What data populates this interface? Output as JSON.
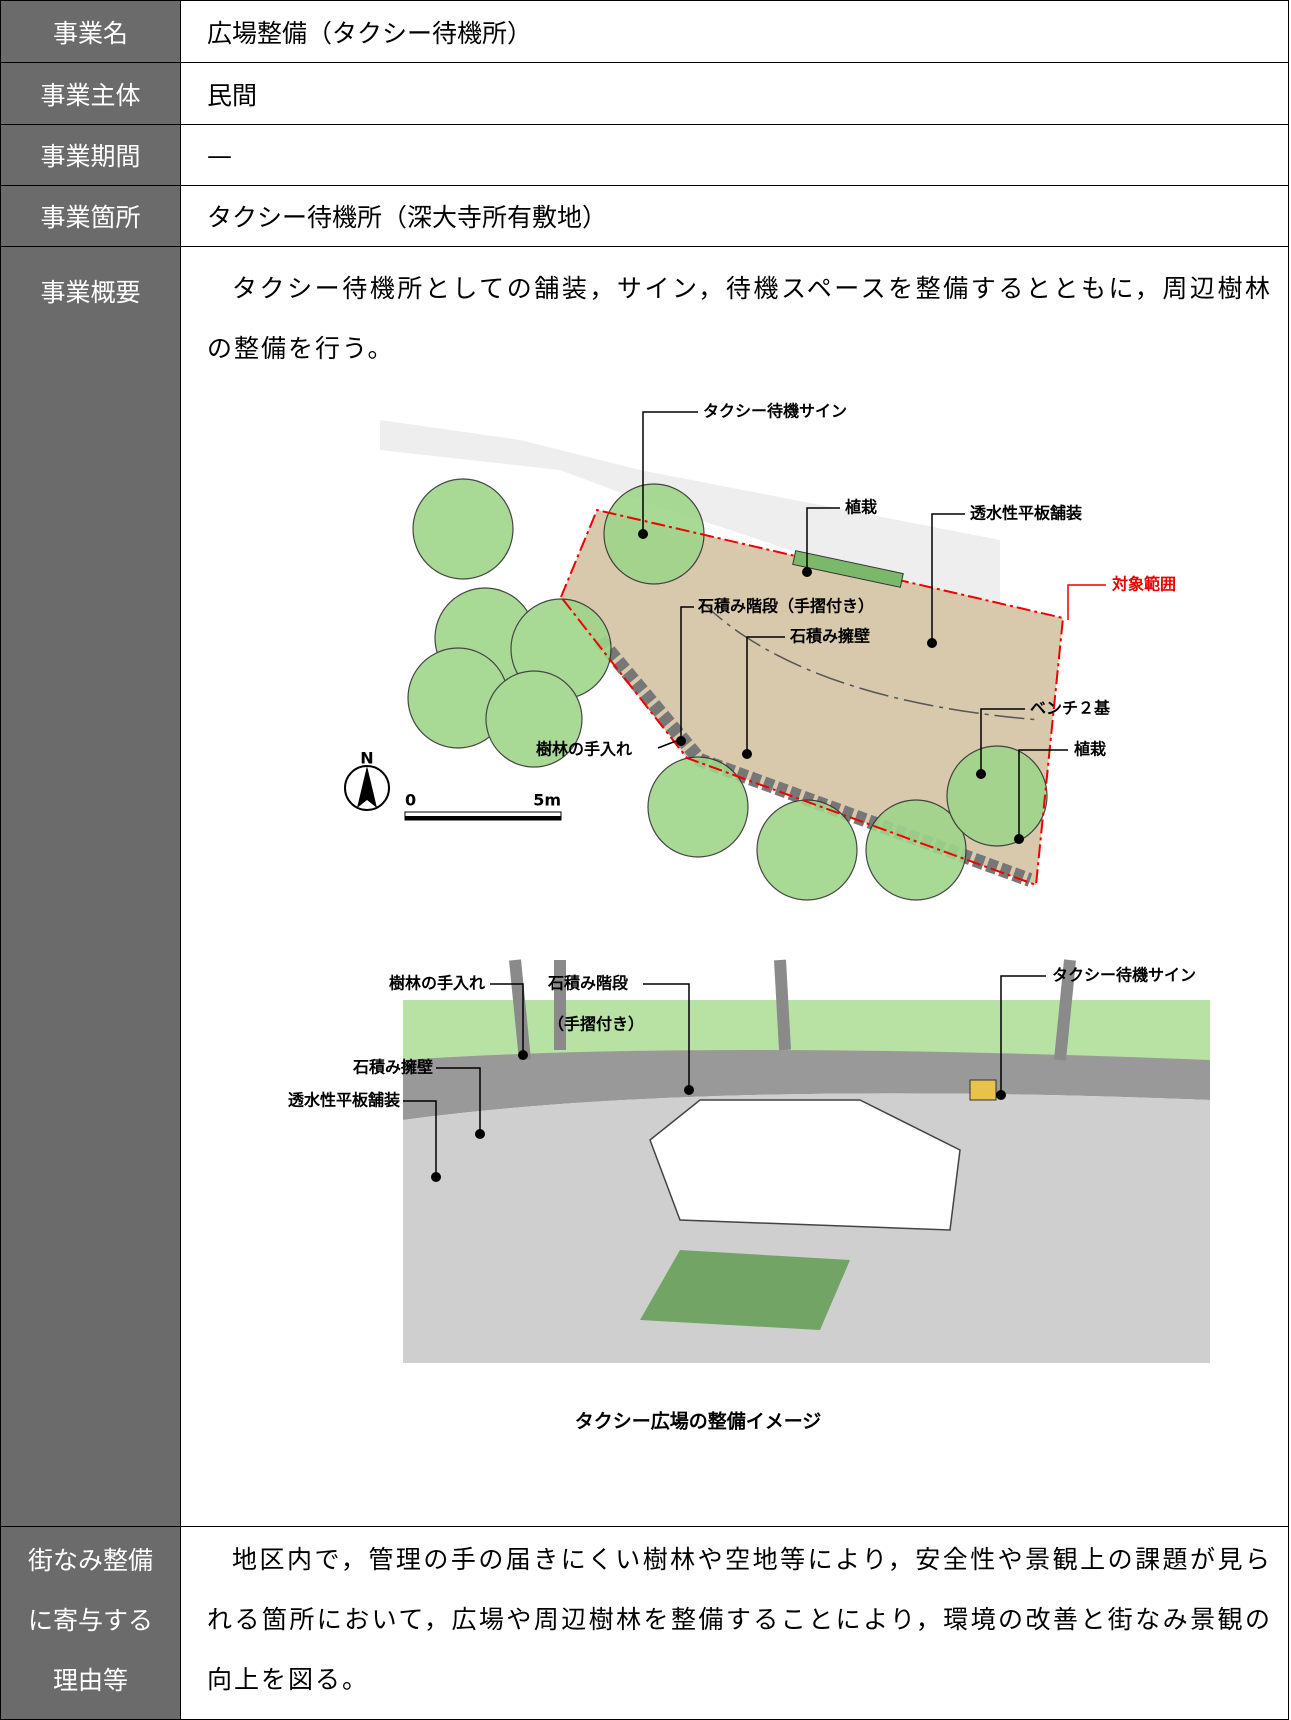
{
  "table": {
    "rows": [
      {
        "label": "事業名",
        "value": "広場整備（タクシー待機所）"
      },
      {
        "label": "事業主体",
        "value": "民間"
      },
      {
        "label": "事業期間",
        "value": "—"
      },
      {
        "label": "事業箇所",
        "value": "タクシー待機所（深大寺所有敷地）"
      },
      {
        "label": "事業概要",
        "value": "タクシー待機所としての舗装，サイン，待機スペースを整備するとともに，周辺樹林の整備を行う。"
      },
      {
        "label_lines": [
          "街なみ整備",
          "に寄与する",
          "理由等"
        ],
        "value": "地区内で，管理の手の届きにくい樹林や空地等により，安全性や景観上の課題が見られる箇所において，広場や周辺樹林を整備することにより，環境の改善と街なみ景観の向上を図る。"
      }
    ]
  },
  "figures": {
    "plan": {
      "labels": [
        "タクシー待機サイン",
        "植栽",
        "透水性平板舗装",
        "対象範囲",
        "石積み階段（手摺付き）",
        "石積み擁壁",
        "ベンチ２基",
        "植栽",
        "樹林の手入れ"
      ],
      "north": "N",
      "scale_start": "0",
      "scale_end": "5m"
    },
    "perspective": {
      "labels": [
        "樹林の手入れ",
        "石積み階段",
        "（手摺付き）",
        "タクシー待機サイン",
        "石積み擁壁",
        "透水性平板舗装"
      ]
    },
    "caption": "タクシー広場の整備イメージ"
  }
}
